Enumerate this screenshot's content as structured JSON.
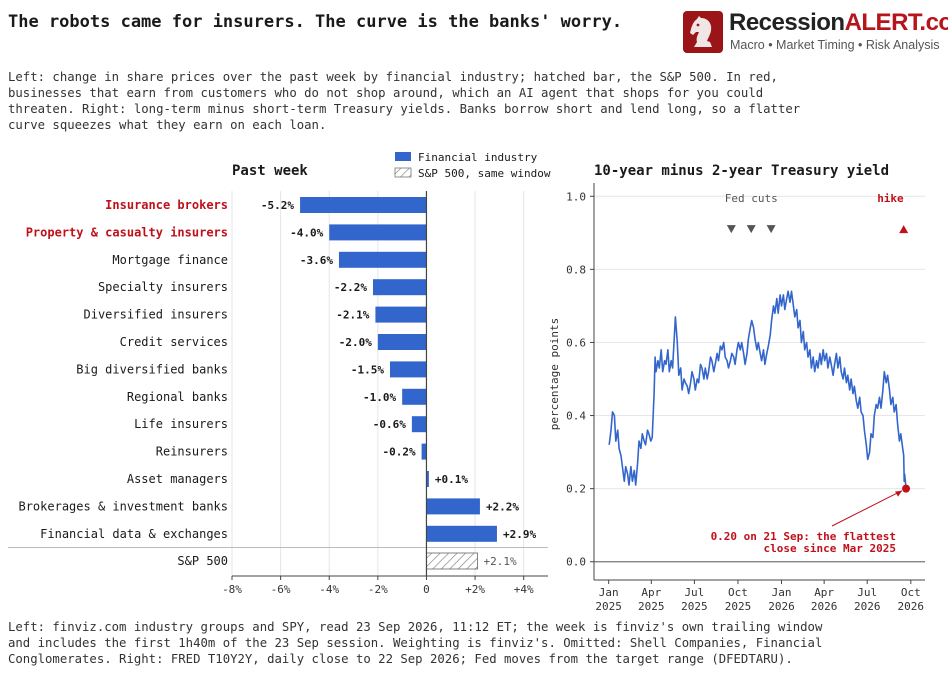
{
  "headline": "The robots came for insurers. The curve is the banks' worry.",
  "brand": {
    "name_part1": "Recession",
    "name_part2": "ALERT.com",
    "tagline": "Macro • Market Timing • Risk Analysis",
    "color_dark": "#222222",
    "color_red": "#b5151b",
    "logo_bg": "#9b1418"
  },
  "intro": "Left: change in share prices over the past week by financial industry; hatched bar, the S&P 500. In red, businesses that earn from customers who do not shop around, which an AI agent that shops for you could threaten. Right: long-term minus short-term Treasury yields. Banks borrow short and lend long, so a flatter curve squeezes what they earn on each loan.",
  "footer": "Left: finviz.com industry groups and SPY, read 23 Sep 2026, 11:12 ET; the week is finviz's own trailing window and includes the first 1h40m of the 23 Sep session. Weighting is finviz's. Omitted: Shell Companies, Financial Conglomerates. Right: FRED T10Y2Y, daily close to 22 Sep 2026; Fed moves from the target range (DFEDTARU).",
  "chart_data": [
    {
      "type": "bar",
      "orientation": "horizontal",
      "title": "Past week",
      "legend": [
        "Financial industry",
        "S&P 500, same window"
      ],
      "legend_position": "top-right",
      "categories": [
        "Insurance brokers",
        "Property & casualty insurers",
        "Mortgage finance",
        "Specialty insurers",
        "Diversified insurers",
        "Credit services",
        "Big diversified banks",
        "Regional banks",
        "Life insurers",
        "Reinsurers",
        "Asset managers",
        "Brokerages & investment banks",
        "Financial data & exchanges"
      ],
      "values": [
        -5.2,
        -4.0,
        -3.6,
        -2.2,
        -2.1,
        -2.0,
        -1.5,
        -1.0,
        -0.6,
        -0.2,
        0.1,
        2.2,
        2.9
      ],
      "value_labels": [
        "-5.2%",
        "-4.0%",
        "-3.6%",
        "-2.2%",
        "-2.1%",
        "-2.0%",
        "-1.5%",
        "-1.0%",
        "-0.6%",
        "-0.2%",
        "+0.1%",
        "+2.2%",
        "+2.9%"
      ],
      "highlighted": [
        "Insurance brokers",
        "Property & casualty insurers"
      ],
      "benchmark": {
        "label": "S&P 500",
        "value": 2.1,
        "value_label": "+2.1%"
      },
      "xlim": [
        -8,
        5
      ],
      "xticks": [
        -8,
        -6,
        -4,
        -2,
        0,
        2,
        4
      ],
      "xtick_labels": [
        "-8%",
        "-6%",
        "-4%",
        "-2%",
        "0",
        "+2%",
        "+4%"
      ],
      "grid": "vertical",
      "colors": {
        "bar": "#3366cc",
        "highlight_text": "#c0111b",
        "hatch": "#777777"
      }
    },
    {
      "type": "line",
      "title": "10-year minus 2-year Treasury yield",
      "ylabel": "percentage points",
      "ylim": [
        -0.05,
        1.05
      ],
      "yticks": [
        0.0,
        0.2,
        0.4,
        0.6,
        0.8,
        1.0
      ],
      "ytick_labels": [
        "0.0",
        "0.2",
        "0.4",
        "0.6",
        "0.8",
        "1.0"
      ],
      "xlim": [
        "2024-12-01",
        "2026-10-31"
      ],
      "xticks": [
        "2025-01-01",
        "2025-04-01",
        "2025-07-01",
        "2025-10-01",
        "2026-01-01",
        "2026-04-01",
        "2026-07-01",
        "2026-10-01"
      ],
      "xtick_labels": [
        [
          "Jan",
          "2025"
        ],
        [
          "Apr",
          "2025"
        ],
        [
          "Jul",
          "2025"
        ],
        [
          "Oct",
          "2025"
        ],
        [
          "Jan",
          "2026"
        ],
        [
          "Apr",
          "2026"
        ],
        [
          "Jul",
          "2026"
        ],
        [
          "Oct",
          "2026"
        ]
      ],
      "grid": "horizontal",
      "series": [
        {
          "color": "#3366cc",
          "points": [
            [
              "2025-01-02",
              0.32
            ],
            [
              "2025-01-06",
              0.36
            ],
            [
              "2025-01-09",
              0.41
            ],
            [
              "2025-01-13",
              0.4
            ],
            [
              "2025-01-16",
              0.33
            ],
            [
              "2025-01-20",
              0.36
            ],
            [
              "2025-01-23",
              0.31
            ],
            [
              "2025-01-27",
              0.29
            ],
            [
              "2025-01-30",
              0.26
            ],
            [
              "2025-02-03",
              0.22
            ],
            [
              "2025-02-06",
              0.26
            ],
            [
              "2025-02-10",
              0.24
            ],
            [
              "2025-02-13",
              0.21
            ],
            [
              "2025-02-17",
              0.26
            ],
            [
              "2025-02-20",
              0.22
            ],
            [
              "2025-02-24",
              0.25
            ],
            [
              "2025-02-27",
              0.21
            ],
            [
              "2025-03-03",
              0.27
            ],
            [
              "2025-03-06",
              0.33
            ],
            [
              "2025-03-10",
              0.31
            ],
            [
              "2025-03-13",
              0.35
            ],
            [
              "2025-03-17",
              0.33
            ],
            [
              "2025-03-20",
              0.32
            ],
            [
              "2025-03-24",
              0.36
            ],
            [
              "2025-03-27",
              0.35
            ],
            [
              "2025-03-31",
              0.33
            ],
            [
              "2025-04-03",
              0.34
            ],
            [
              "2025-04-07",
              0.46
            ],
            [
              "2025-04-09",
              0.56
            ],
            [
              "2025-04-11",
              0.52
            ],
            [
              "2025-04-15",
              0.55
            ],
            [
              "2025-04-18",
              0.53
            ],
            [
              "2025-04-22",
              0.58
            ],
            [
              "2025-04-25",
              0.52
            ],
            [
              "2025-04-29",
              0.55
            ],
            [
              "2025-05-02",
              0.54
            ],
            [
              "2025-05-06",
              0.58
            ],
            [
              "2025-05-09",
              0.52
            ],
            [
              "2025-05-13",
              0.55
            ],
            [
              "2025-05-16",
              0.53
            ],
            [
              "2025-05-19",
              0.6
            ],
            [
              "2025-05-22",
              0.67
            ],
            [
              "2025-05-26",
              0.6
            ],
            [
              "2025-05-29",
              0.51
            ],
            [
              "2025-06-02",
              0.53
            ],
            [
              "2025-06-05",
              0.47
            ],
            [
              "2025-06-09",
              0.5
            ],
            [
              "2025-06-12",
              0.49
            ],
            [
              "2025-06-16",
              0.48
            ],
            [
              "2025-06-19",
              0.46
            ],
            [
              "2025-06-23",
              0.49
            ],
            [
              "2025-06-26",
              0.52
            ],
            [
              "2025-06-30",
              0.5
            ],
            [
              "2025-07-03",
              0.47
            ],
            [
              "2025-07-07",
              0.5
            ],
            [
              "2025-07-10",
              0.49
            ],
            [
              "2025-07-14",
              0.54
            ],
            [
              "2025-07-17",
              0.53
            ],
            [
              "2025-07-21",
              0.5
            ],
            [
              "2025-07-24",
              0.53
            ],
            [
              "2025-07-28",
              0.5
            ],
            [
              "2025-07-31",
              0.52
            ],
            [
              "2025-08-04",
              0.56
            ],
            [
              "2025-08-07",
              0.55
            ],
            [
              "2025-08-11",
              0.52
            ],
            [
              "2025-08-14",
              0.54
            ],
            [
              "2025-08-18",
              0.57
            ],
            [
              "2025-08-21",
              0.55
            ],
            [
              "2025-08-25",
              0.59
            ],
            [
              "2025-08-28",
              0.58
            ],
            [
              "2025-09-01",
              0.6
            ],
            [
              "2025-09-04",
              0.56
            ],
            [
              "2025-09-08",
              0.55
            ],
            [
              "2025-09-11",
              0.53
            ],
            [
              "2025-09-15",
              0.55
            ],
            [
              "2025-09-18",
              0.57
            ],
            [
              "2025-09-22",
              0.56
            ],
            [
              "2025-09-25",
              0.54
            ],
            [
              "2025-09-29",
              0.58
            ],
            [
              "2025-10-02",
              0.6
            ],
            [
              "2025-10-06",
              0.58
            ],
            [
              "2025-10-09",
              0.6
            ],
            [
              "2025-10-13",
              0.57
            ],
            [
              "2025-10-16",
              0.54
            ],
            [
              "2025-10-20",
              0.57
            ],
            [
              "2025-10-23",
              0.61
            ],
            [
              "2025-10-27",
              0.64
            ],
            [
              "2025-10-30",
              0.66
            ],
            [
              "2025-11-03",
              0.64
            ],
            [
              "2025-11-06",
              0.61
            ],
            [
              "2025-11-10",
              0.58
            ],
            [
              "2025-11-13",
              0.6
            ],
            [
              "2025-11-17",
              0.57
            ],
            [
              "2025-11-20",
              0.55
            ],
            [
              "2025-11-24",
              0.58
            ],
            [
              "2025-11-27",
              0.54
            ],
            [
              "2025-12-01",
              0.57
            ],
            [
              "2025-12-04",
              0.59
            ],
            [
              "2025-12-08",
              0.62
            ],
            [
              "2025-12-11",
              0.66
            ],
            [
              "2025-12-15",
              0.7
            ],
            [
              "2025-12-18",
              0.68
            ],
            [
              "2025-12-22",
              0.72
            ],
            [
              "2025-12-25",
              0.68
            ],
            [
              "2025-12-29",
              0.73
            ],
            [
              "2026-01-01",
              0.7
            ],
            [
              "2026-01-05",
              0.73
            ],
            [
              "2026-01-08",
              0.69
            ],
            [
              "2026-01-12",
              0.72
            ],
            [
              "2026-01-15",
              0.74
            ],
            [
              "2026-01-19",
              0.71
            ],
            [
              "2026-01-22",
              0.74
            ],
            [
              "2026-01-26",
              0.7
            ],
            [
              "2026-01-29",
              0.67
            ],
            [
              "2026-02-02",
              0.69
            ],
            [
              "2026-02-05",
              0.64
            ],
            [
              "2026-02-09",
              0.66
            ],
            [
              "2026-02-12",
              0.6
            ],
            [
              "2026-02-16",
              0.63
            ],
            [
              "2026-02-19",
              0.58
            ],
            [
              "2026-02-23",
              0.6
            ],
            [
              "2026-02-26",
              0.56
            ],
            [
              "2026-03-02",
              0.58
            ],
            [
              "2026-03-05",
              0.53
            ],
            [
              "2026-03-09",
              0.56
            ],
            [
              "2026-03-12",
              0.52
            ],
            [
              "2026-03-16",
              0.55
            ],
            [
              "2026-03-19",
              0.53
            ],
            [
              "2026-03-23",
              0.57
            ],
            [
              "2026-03-26",
              0.54
            ],
            [
              "2026-03-30",
              0.58
            ],
            [
              "2026-04-02",
              0.55
            ],
            [
              "2026-04-06",
              0.57
            ],
            [
              "2026-04-09",
              0.53
            ],
            [
              "2026-04-13",
              0.56
            ],
            [
              "2026-04-16",
              0.54
            ],
            [
              "2026-04-20",
              0.51
            ],
            [
              "2026-04-23",
              0.54
            ],
            [
              "2026-04-27",
              0.57
            ],
            [
              "2026-04-30",
              0.53
            ],
            [
              "2026-05-04",
              0.56
            ],
            [
              "2026-05-07",
              0.52
            ],
            [
              "2026-05-11",
              0.5
            ],
            [
              "2026-05-14",
              0.53
            ],
            [
              "2026-05-18",
              0.49
            ],
            [
              "2026-05-21",
              0.51
            ],
            [
              "2026-05-25",
              0.47
            ],
            [
              "2026-05-28",
              0.5
            ],
            [
              "2026-06-01",
              0.46
            ],
            [
              "2026-06-04",
              0.48
            ],
            [
              "2026-06-08",
              0.44
            ],
            [
              "2026-06-11",
              0.42
            ],
            [
              "2026-06-15",
              0.45
            ],
            [
              "2026-06-18",
              0.41
            ],
            [
              "2026-06-22",
              0.4
            ],
            [
              "2026-06-25",
              0.36
            ],
            [
              "2026-06-29",
              0.32
            ],
            [
              "2026-07-02",
              0.28
            ],
            [
              "2026-07-06",
              0.3
            ],
            [
              "2026-07-09",
              0.35
            ],
            [
              "2026-07-13",
              0.34
            ],
            [
              "2026-07-16",
              0.4
            ],
            [
              "2026-07-20",
              0.43
            ],
            [
              "2026-07-23",
              0.42
            ],
            [
              "2026-07-27",
              0.45
            ],
            [
              "2026-07-30",
              0.42
            ],
            [
              "2026-08-03",
              0.47
            ],
            [
              "2026-08-06",
              0.52
            ],
            [
              "2026-08-10",
              0.49
            ],
            [
              "2026-08-13",
              0.51
            ],
            [
              "2026-08-17",
              0.47
            ],
            [
              "2026-08-20",
              0.43
            ],
            [
              "2026-08-24",
              0.45
            ],
            [
              "2026-08-27",
              0.41
            ],
            [
              "2026-08-31",
              0.43
            ],
            [
              "2026-09-03",
              0.38
            ],
            [
              "2026-09-07",
              0.33
            ],
            [
              "2026-09-10",
              0.35
            ],
            [
              "2026-09-14",
              0.31
            ],
            [
              "2026-09-16",
              0.29
            ],
            [
              "2026-09-17",
              0.22
            ],
            [
              "2026-09-18",
              0.24
            ],
            [
              "2026-09-21",
              0.2
            ],
            [
              "2026-09-22",
              0.2
            ]
          ]
        }
      ],
      "events": [
        {
          "label": "Fed cuts",
          "dates": [
            "2025-09-17",
            "2025-10-29",
            "2025-12-10"
          ],
          "marker": "down-triangle",
          "color": "#555555"
        },
        {
          "label": "hike",
          "dates": [
            "2026-09-16"
          ],
          "marker": "up-triangle",
          "color": "#c0111b"
        }
      ],
      "annotation": {
        "text": [
          "0.20 on 21 Sep: the flattest",
          "close since Mar 2025"
        ],
        "date": "2026-09-21",
        "value": 0.2,
        "color": "#c0111b"
      }
    }
  ]
}
